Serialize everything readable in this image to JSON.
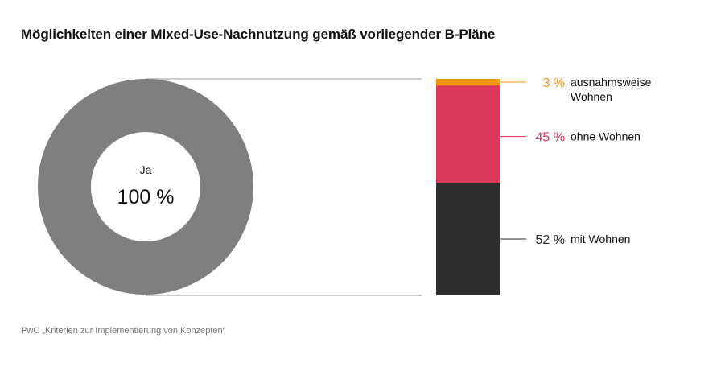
{
  "title": "Möglichkeiten einer Mixed-Use-Nachnutzung gemäß vorliegender B-Pläne",
  "source": "PwC „Kriterien zur Implementierung von Konzepten“",
  "colors": {
    "donut": "#7f7f7f",
    "mit_wohnen": "#2d2d2d",
    "ohne_wohnen": "#d9395a",
    "ausnahmsweise": "#f0960a",
    "connector": "#999999"
  },
  "chart_data": [
    {
      "type": "pie",
      "labels": [
        "Ja"
      ],
      "values": [
        100
      ],
      "center_label": "Ja",
      "center_value": "100 %"
    },
    {
      "type": "bar",
      "stacked": true,
      "segments": [
        {
          "value": 52,
          "value_label": "52 %",
          "label": "mit Wohnen",
          "color": "#2d2d2d"
        },
        {
          "value": 45,
          "value_label": "45 %",
          "label": "ohne Wohnen",
          "color": "#d9395a"
        },
        {
          "value": 3,
          "value_label": "3 %",
          "label_lines": [
            "ausnahmsweise",
            "Wohnen"
          ],
          "color": "#f0960a"
        }
      ]
    }
  ]
}
